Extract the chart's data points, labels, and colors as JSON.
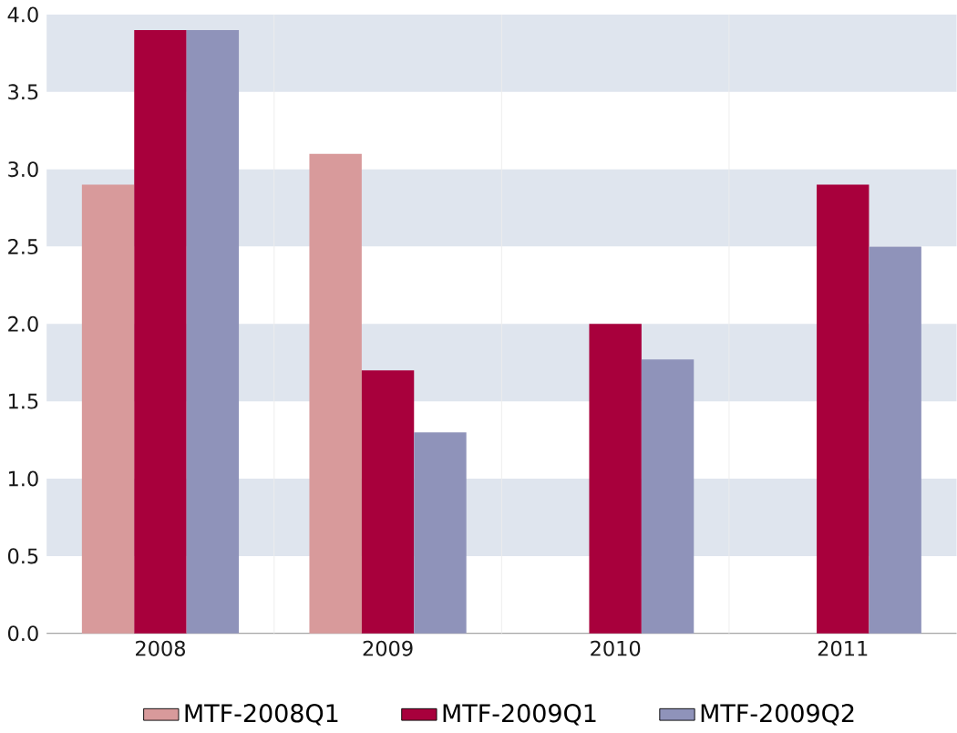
{
  "chart_data": {
    "type": "bar",
    "categories": [
      "2008",
      "2009",
      "2010",
      "2011"
    ],
    "series": [
      {
        "name": "MTF-2008Q1",
        "color": "#d89a9b",
        "values": [
          2.9,
          3.1,
          null,
          null
        ]
      },
      {
        "name": "MTF-2009Q1",
        "color": "#a8003c",
        "values": [
          3.9,
          1.7,
          2.0,
          2.9
        ]
      },
      {
        "name": "MTF-2009Q2",
        "color": "#8f93ba",
        "values": [
          3.9,
          1.3,
          1.77,
          2.5
        ]
      }
    ],
    "ylim": [
      0,
      4
    ],
    "yticks": [
      {
        "value": 0,
        "label": "0.0"
      },
      {
        "value": 0.5,
        "label": "0.5"
      },
      {
        "value": 1,
        "label": "1.0"
      },
      {
        "value": 1.5,
        "label": "1.5"
      },
      {
        "value": 2,
        "label": "2.0"
      },
      {
        "value": 2.5,
        "label": "2.5"
      },
      {
        "value": 3,
        "label": "3.0"
      },
      {
        "value": 3.5,
        "label": "3.5"
      },
      {
        "value": 4,
        "label": "4.0"
      }
    ],
    "bands": [
      {
        "axis": "y",
        "from": 0.5,
        "to": 1.0,
        "color": "#dfe5ee"
      },
      {
        "axis": "y",
        "from": 1.5,
        "to": 2.0,
        "color": "#dfe5ee"
      },
      {
        "axis": "y",
        "from": 2.5,
        "to": 3.0,
        "color": "#dfe5ee"
      },
      {
        "axis": "y",
        "from": 3.5,
        "to": 4.0,
        "color": "#dfe5ee"
      }
    ],
    "legend": "bottom",
    "grid": false
  }
}
